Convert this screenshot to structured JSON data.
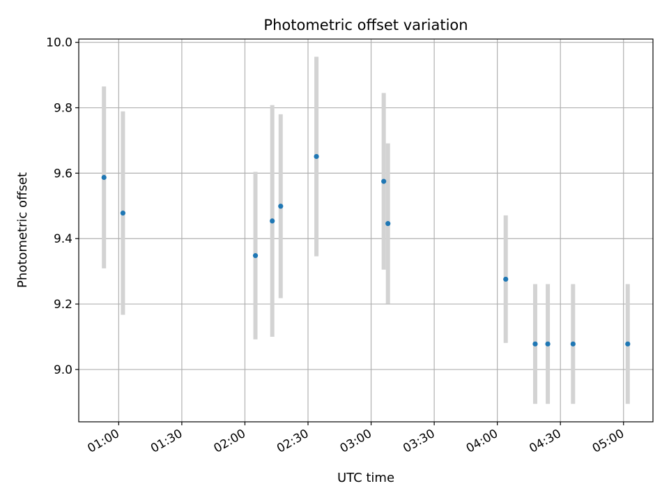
{
  "chart_data": {
    "type": "scatter",
    "title": "Photometric offset variation",
    "xlabel": "UTC time",
    "ylabel": "Photometric offset",
    "x_ticks": [
      "01:00",
      "01:30",
      "02:00",
      "02:30",
      "03:00",
      "03:30",
      "04:00",
      "04:30",
      "05:00"
    ],
    "y_ticks": [
      "9.0",
      "9.2",
      "9.4",
      "9.6",
      "9.8",
      "10.0"
    ],
    "xlim": [
      "00:41",
      "05:14"
    ],
    "ylim": [
      8.84,
      10.01
    ],
    "grid": true,
    "colors": {
      "point": "#1f77b4",
      "errorbar": "#d3d3d3",
      "grid": "#b0b0b0"
    },
    "points": [
      {
        "x": "00:53",
        "y": 9.587,
        "yerr": 0.278
      },
      {
        "x": "01:02",
        "y": 9.478,
        "yerr": 0.311
      },
      {
        "x": "02:05",
        "y": 9.348,
        "yerr": 0.256
      },
      {
        "x": "02:13",
        "y": 9.454,
        "yerr": 0.354
      },
      {
        "x": "02:17",
        "y": 9.499,
        "yerr": 0.281
      },
      {
        "x": "02:34",
        "y": 9.651,
        "yerr": 0.305
      },
      {
        "x": "03:06",
        "y": 9.575,
        "yerr": 0.27
      },
      {
        "x": "03:08",
        "y": 9.446,
        "yerr": 0.245
      },
      {
        "x": "04:04",
        "y": 9.276,
        "yerr": 0.195
      },
      {
        "x": "04:18",
        "y": 9.078,
        "yerr": 0.183
      },
      {
        "x": "04:24",
        "y": 9.078,
        "yerr": 0.183
      },
      {
        "x": "04:36",
        "y": 9.078,
        "yerr": 0.183
      },
      {
        "x": "05:02",
        "y": 9.078,
        "yerr": 0.183
      }
    ]
  }
}
